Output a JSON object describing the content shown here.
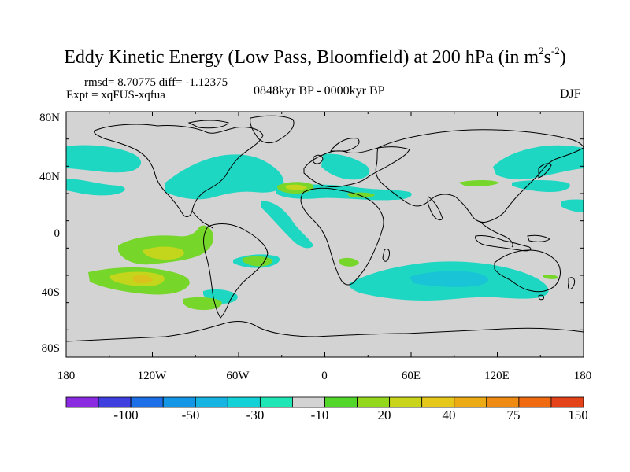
{
  "title": {
    "main": "Eddy Kinetic Energy (Low Pass, Bloomfield) at 200 hPa (in m",
    "sup1": "2",
    "mid": "s",
    "sup2": "-2",
    "end": ")"
  },
  "stats": {
    "rmsd_label": "rmsd=",
    "rmsd": "8.70775",
    "diff_label": "diff=",
    "diff": "-1.12375"
  },
  "experiment": "Expt = xqFUS-xqfua",
  "period": "0848kyr BP - 0000kyr BP",
  "season": "DJF",
  "axes": {
    "lat_labels": [
      "80N",
      "40N",
      "0",
      "40S",
      "80S"
    ],
    "lon_labels": [
      "180",
      "120W",
      "60W",
      "0",
      "60E",
      "120E",
      "180"
    ]
  },
  "colorbar": {
    "colors": [
      "#8a2be2",
      "#3f3fe0",
      "#1c6fe6",
      "#1496e6",
      "#16b4e2",
      "#12d2d8",
      "#1ee6b4",
      "#d3d3d3",
      "#52d62a",
      "#94d81e",
      "#c8d51a",
      "#e6c81a",
      "#ecaa14",
      "#ef8a12",
      "#ef6a10",
      "#e4431a"
    ],
    "labels": [
      "-100",
      "-50",
      "-30",
      "-10",
      "20",
      "40",
      "75",
      "150"
    ]
  },
  "map": {
    "ocean_color": "#d3d3d3",
    "anomaly_colors": {
      "cyan": "#1ed7c2",
      "teal": "#18c4d6",
      "green": "#76d72a",
      "yellow": "#c4d61c",
      "orange": "#d9c21b"
    }
  }
}
